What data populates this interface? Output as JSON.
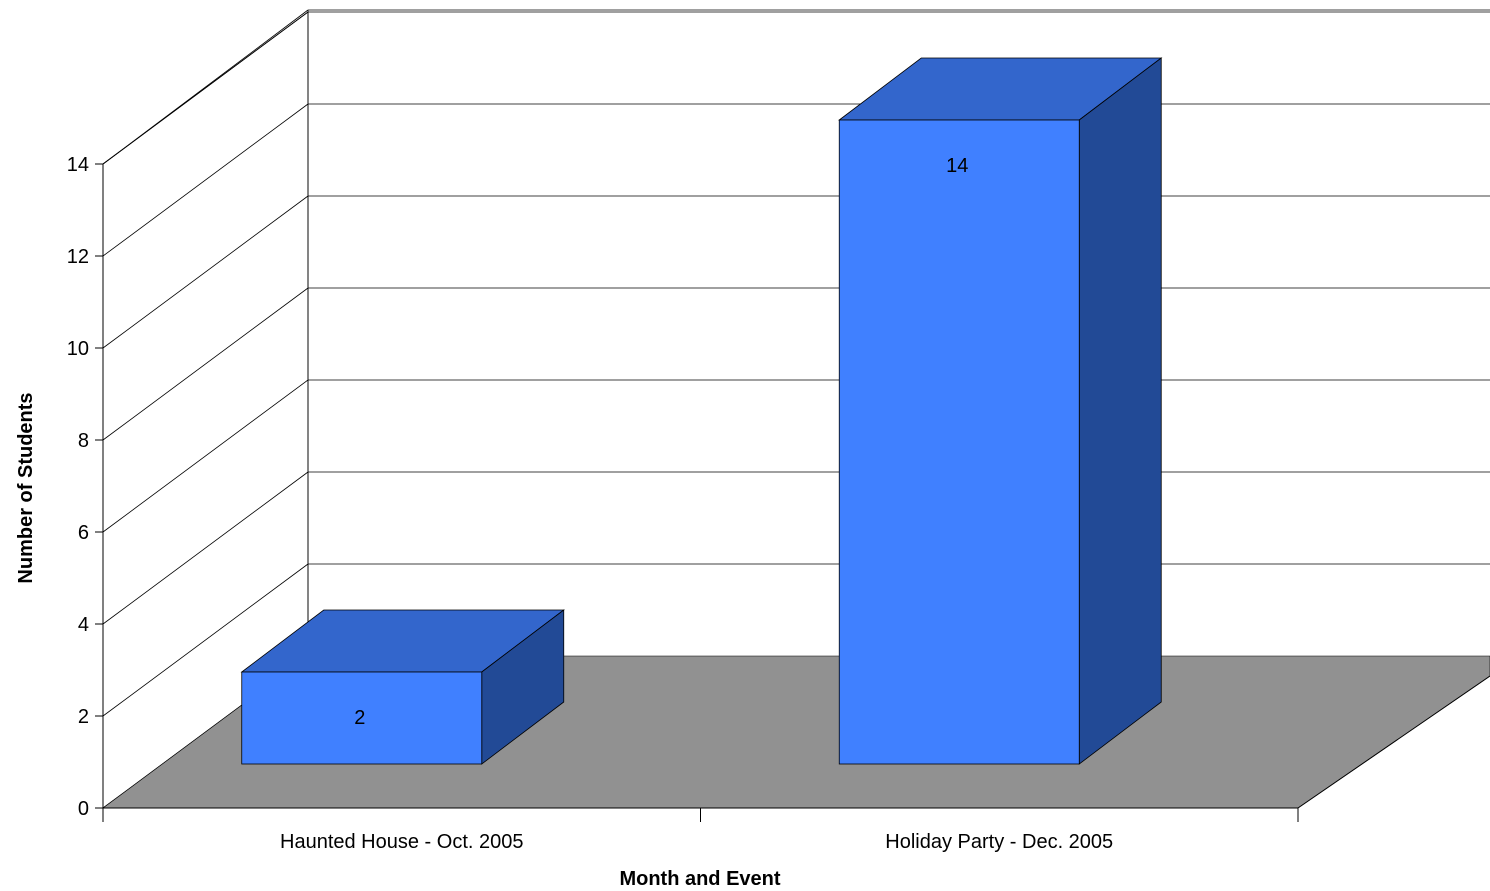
{
  "chart_data": {
    "type": "bar",
    "categories": [
      "Haunted House - Oct. 2005",
      "Holiday Party - Dec. 2005"
    ],
    "values": [
      2,
      14
    ],
    "data_labels": [
      "2",
      "14"
    ],
    "title": "",
    "xlabel": "Month and Event",
    "ylabel": "Number of Students",
    "ylim": [
      0,
      14
    ],
    "yticks": [
      0,
      2,
      4,
      6,
      8,
      10,
      12,
      14
    ],
    "ytick_labels": [
      "0",
      "2",
      "4",
      "6",
      "8",
      "10",
      "12",
      "14"
    ],
    "grid": true,
    "style": "3d",
    "colors": {
      "bar_front": "#4080ff",
      "bar_top": "#3366cc",
      "bar_side": "#224a96",
      "floor": "#919191",
      "grid": "#000000"
    }
  }
}
